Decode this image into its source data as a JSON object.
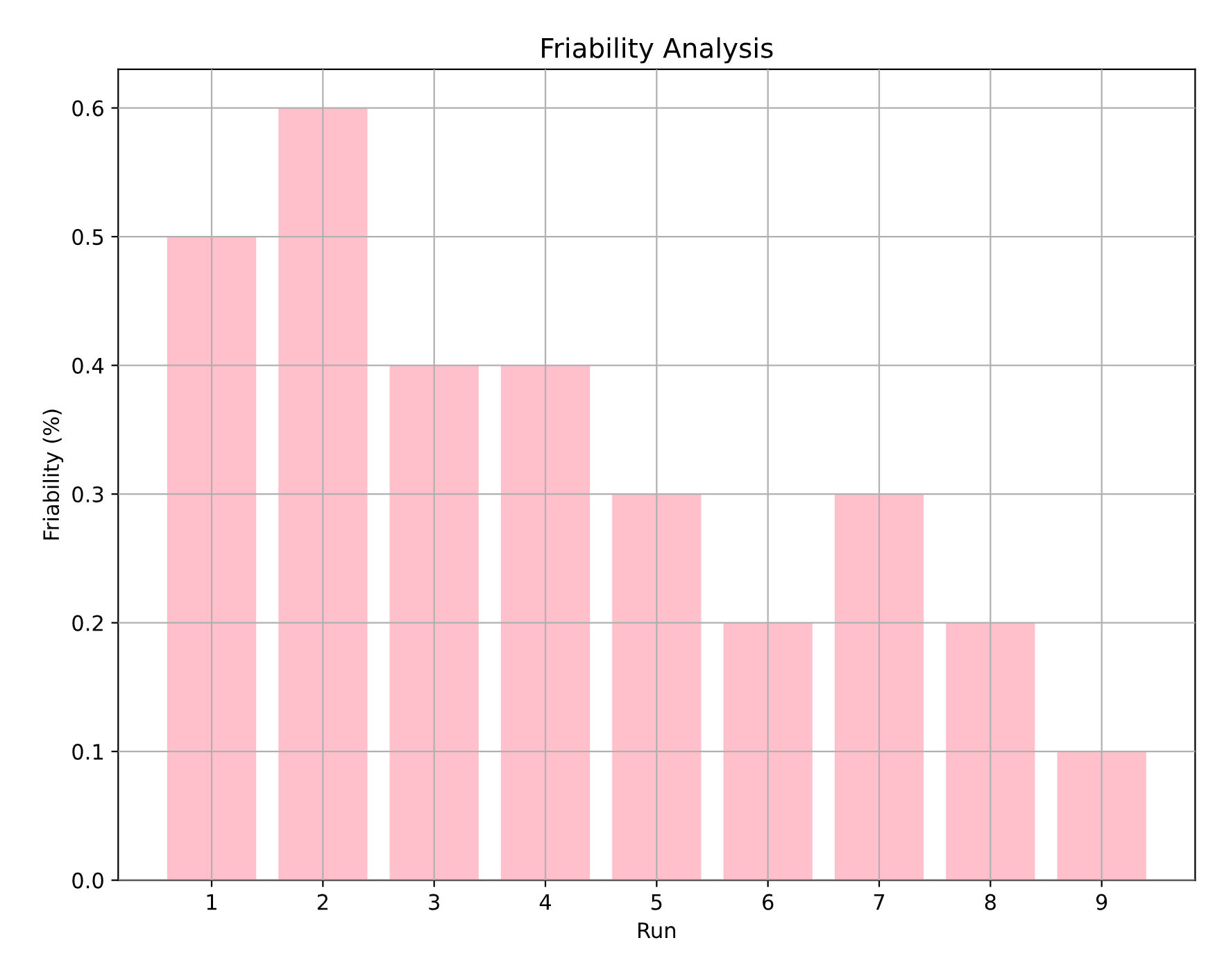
{
  "chart_data": {
    "type": "bar",
    "title": "Friability Analysis",
    "xlabel": "Run",
    "ylabel": "Friability (%)",
    "categories": [
      "1",
      "2",
      "3",
      "4",
      "5",
      "6",
      "7",
      "8",
      "9"
    ],
    "values": [
      0.5,
      0.6,
      0.4,
      0.4,
      0.3,
      0.2,
      0.3,
      0.2,
      0.1
    ],
    "color": "#ffc0cb",
    "ylim": [
      0,
      0.63
    ],
    "yticks": [
      {
        "value": 0,
        "label": "0.0"
      },
      0.1,
      0.2,
      0.3,
      0.4,
      0.5,
      0.6
    ],
    "grid": true
  }
}
